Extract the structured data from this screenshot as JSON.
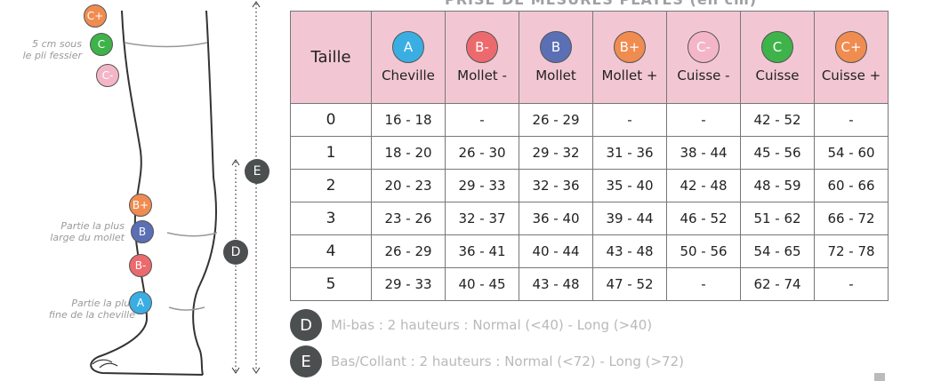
{
  "title": "PRISE DE MESURES PLATES (en cm)",
  "leg": {
    "label_thigh": [
      "5 cm sous",
      "le pli fessier"
    ],
    "label_calf": [
      "Partie la plus",
      "large du mollet"
    ],
    "label_ankle": [
      "Partie la plus",
      "fine de la cheville"
    ],
    "markers": [
      {
        "key": "C+",
        "color": "#f08c4f"
      },
      {
        "key": "C",
        "color": "#3db34a"
      },
      {
        "key": "C-",
        "color": "#f4b6c7"
      },
      {
        "key": "B+",
        "color": "#f08c4f"
      },
      {
        "key": "B",
        "color": "#5b6fb5"
      },
      {
        "key": "B-",
        "color": "#ec6a6e"
      },
      {
        "key": "A",
        "color": "#3aaee3"
      }
    ],
    "dim_e": "E",
    "dim_d": "D"
  },
  "table": {
    "size_header": "Taille",
    "columns": [
      {
        "code": "A",
        "label": "Cheville",
        "color": "#3aaee3"
      },
      {
        "code": "B-",
        "label": "Mollet -",
        "color": "#ec6a6e"
      },
      {
        "code": "B",
        "label": "Mollet",
        "color": "#5b6fb5"
      },
      {
        "code": "B+",
        "label": "Mollet +",
        "color": "#f08c4f"
      },
      {
        "code": "C-",
        "label": "Cuisse -",
        "color": "#f4b6c7"
      },
      {
        "code": "C",
        "label": "Cuisse",
        "color": "#3db34a"
      },
      {
        "code": "C+",
        "label": "Cuisse +",
        "color": "#f08c4f"
      }
    ],
    "rows": [
      {
        "size": "0",
        "values": [
          "16 - 18",
          "-",
          "26 - 29",
          "-",
          "-",
          "42 - 52",
          "-"
        ]
      },
      {
        "size": "1",
        "values": [
          "18 - 20",
          "26 - 30",
          "29 - 32",
          "31 - 36",
          "38 - 44",
          "45 - 56",
          "54 - 60"
        ]
      },
      {
        "size": "2",
        "values": [
          "20 - 23",
          "29 - 33",
          "32 - 36",
          "35 - 40",
          "42 - 48",
          "48 - 59",
          "60 - 66"
        ]
      },
      {
        "size": "3",
        "values": [
          "23 - 26",
          "32 - 37",
          "36 - 40",
          "39 - 44",
          "46 - 52",
          "51 - 62",
          "66 - 72"
        ]
      },
      {
        "size": "4",
        "values": [
          "26 - 29",
          "36 - 41",
          "40 - 44",
          "43 - 48",
          "50 - 56",
          "54 - 65",
          "72 - 78"
        ]
      },
      {
        "size": "5",
        "values": [
          "29 - 33",
          "40 - 45",
          "43 - 48",
          "47 - 52",
          "-",
          "62 - 74",
          "-"
        ]
      }
    ]
  },
  "notes": [
    {
      "key": "D",
      "text": "Mi-bas : 2 hauteurs : Normal (<40) - Long (>40)"
    },
    {
      "key": "E",
      "text": "Bas/Collant : 2 hauteurs : Normal (<72) - Long (>72)"
    }
  ]
}
